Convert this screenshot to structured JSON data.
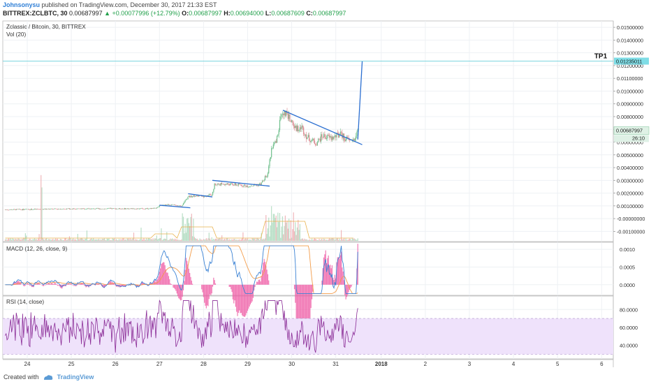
{
  "header": {
    "user": "Johnsonysu",
    "published_text": "published on TradingView.com, December 30, 2017 21:33 EST",
    "symbol": "BITTREX:ZCLBTC, 30",
    "last": "0.00687997",
    "change_arrow": "▲",
    "change": "+0.00077996 (+12.79%)",
    "o_label": "O:",
    "o": "0.00687997",
    "h_label": "H:",
    "h": "0.00694000",
    "l_label": "L:",
    "l": "0.00687609",
    "c_label": "C:",
    "c": "0.00687997"
  },
  "footer": {
    "created_with": "Created with",
    "brand": "TradingView"
  },
  "chart_data": [
    {
      "type": "candlestick",
      "legend": "Zclassic / Bitcoin, 30, BITTREX",
      "volume_label": "Vol (20)",
      "ylim": [
        -0.0018,
        0.0155
      ],
      "y_ticks": [
        "0.01500000",
        "0.01400000",
        "0.01300000",
        "0.01200000",
        "0.01100000",
        "0.01000000",
        "0.00900000",
        "0.00800000",
        "0.00700000",
        "0.00600000",
        "0.00500000",
        "0.00400000",
        "0.00300000",
        "0.00200000",
        "0.00100000",
        "-0.00000000",
        "-0.00100000"
      ],
      "y_tick_values": [
        0.015,
        0.014,
        0.013,
        0.012,
        0.011,
        0.01,
        0.009,
        0.008,
        0.007,
        0.006,
        0.005,
        0.004,
        0.003,
        0.002,
        0.001,
        0.0,
        -0.001
      ],
      "x_ticks": [
        "24",
        "25",
        "26",
        "27",
        "28",
        "29",
        "30",
        "31",
        "2018",
        "2",
        "3",
        "4",
        "5",
        "6"
      ],
      "price_path": [
        [
          23.5,
          0.0007
        ],
        [
          24.0,
          0.00072
        ],
        [
          24.5,
          0.00075
        ],
        [
          25.0,
          0.00077
        ],
        [
          25.5,
          0.00077
        ],
        [
          26.0,
          0.00078
        ],
        [
          26.5,
          0.00078
        ],
        [
          26.9,
          0.0008
        ],
        [
          27.0,
          0.001
        ],
        [
          27.2,
          0.0011
        ],
        [
          27.5,
          0.001
        ],
        [
          27.65,
          0.0017
        ],
        [
          27.8,
          0.0018
        ],
        [
          28.0,
          0.00175
        ],
        [
          28.2,
          0.0019
        ],
        [
          28.25,
          0.0027
        ],
        [
          28.5,
          0.0027
        ],
        [
          28.8,
          0.00265
        ],
        [
          29.0,
          0.00255
        ],
        [
          29.3,
          0.0027
        ],
        [
          29.45,
          0.0035
        ],
        [
          29.55,
          0.0056
        ],
        [
          29.65,
          0.006
        ],
        [
          29.75,
          0.008
        ],
        [
          29.85,
          0.0083
        ],
        [
          30.0,
          0.0076
        ],
        [
          30.1,
          0.007
        ],
        [
          30.2,
          0.0073
        ],
        [
          30.35,
          0.0064
        ],
        [
          30.55,
          0.0059
        ],
        [
          30.7,
          0.0065
        ],
        [
          30.9,
          0.0063
        ],
        [
          31.1,
          0.0066
        ],
        [
          31.3,
          0.0061
        ],
        [
          31.45,
          0.0063
        ],
        [
          31.5,
          0.00688
        ]
      ],
      "resistance_line": {
        "label": "TP1",
        "value": 0.01235011,
        "tag": "0.01235011"
      },
      "last_price_tag": "0.00687997",
      "countdown_tag": "26:10",
      "trendlines": [
        {
          "x1": 27.0,
          "y1": 0.00105,
          "x2": 27.7,
          "y2": 0.00085
        },
        {
          "x1": 27.65,
          "y1": 0.00195,
          "x2": 28.2,
          "y2": 0.0017
        },
        {
          "x1": 28.2,
          "y1": 0.003,
          "x2": 29.5,
          "y2": 0.00255
        },
        {
          "x1": 29.8,
          "y1": 0.0085,
          "x2": 31.6,
          "y2": 0.0058
        },
        {
          "x1": 31.5,
          "y1": 0.0062,
          "x2": 31.6,
          "y2": 0.01235
        }
      ]
    },
    {
      "type": "line",
      "legend": "MACD (12, 26, close, 9)",
      "ylim": [
        -0.0003,
        0.0012
      ],
      "y_ticks": [
        "0.0010",
        "0.0005",
        "0.0000"
      ],
      "y_tick_values": [
        0.001,
        0.0005,
        0.0
      ]
    },
    {
      "type": "line",
      "legend": "RSI (14, close)",
      "ylim": [
        25,
        95
      ],
      "y_ticks": [
        "80.0000",
        "60.0000",
        "40.0000"
      ],
      "y_tick_values": [
        80,
        60,
        40
      ],
      "band": [
        30,
        70
      ]
    }
  ],
  "colors": {
    "up": "#6fbf8c",
    "down": "#d9848a",
    "volume_up": "#b9dfc7",
    "volume_down": "#f0b7bb",
    "trendline": "#2b6fd1",
    "resistance": "#7ed6df",
    "macd": "#3b82d4",
    "signal": "#f39c4a",
    "histogram": "#ef5fa7",
    "rsi": "#8a2b96",
    "rsi_band": "#efe2fb",
    "ma": "#e9b24e"
  }
}
